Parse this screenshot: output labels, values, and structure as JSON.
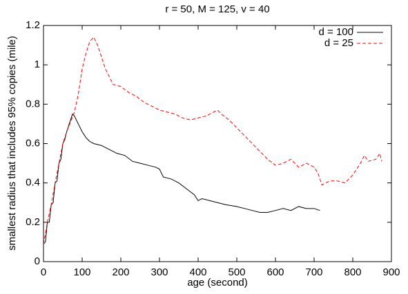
{
  "chart_data": {
    "type": "line",
    "title": "r = 50, M = 125, v = 40",
    "x_label": "age (second)",
    "y_label": "smallest radius that includes 95% copies (mile)",
    "xlim": [
      0,
      900
    ],
    "xticks": [
      0,
      100,
      200,
      300,
      400,
      500,
      600,
      700,
      800,
      900
    ],
    "ylim": [
      0,
      1.2
    ],
    "yticks": [
      0,
      0.2,
      0.4,
      0.6,
      0.8,
      1,
      1.2
    ],
    "legend": "top right",
    "series": [
      {
        "name": "d = 100",
        "color": "#000000",
        "style": "solid",
        "x": [
          0,
          5,
          10,
          15,
          20,
          25,
          30,
          35,
          40,
          45,
          50,
          55,
          60,
          70,
          75,
          80,
          90,
          100,
          110,
          120,
          130,
          150,
          170,
          190,
          210,
          230,
          250,
          270,
          290,
          300,
          310,
          330,
          350,
          370,
          390,
          400,
          410,
          430,
          450,
          470,
          500,
          520,
          540,
          560,
          580,
          600,
          620,
          640,
          660,
          680,
          700,
          715
        ],
        "values": [
          0.09,
          0.1,
          0.2,
          0.2,
          0.29,
          0.3,
          0.4,
          0.41,
          0.5,
          0.52,
          0.6,
          0.62,
          0.66,
          0.72,
          0.75,
          0.74,
          0.7,
          0.66,
          0.63,
          0.61,
          0.6,
          0.59,
          0.57,
          0.55,
          0.54,
          0.51,
          0.5,
          0.49,
          0.48,
          0.47,
          0.43,
          0.42,
          0.4,
          0.37,
          0.34,
          0.31,
          0.32,
          0.31,
          0.3,
          0.29,
          0.28,
          0.27,
          0.26,
          0.25,
          0.25,
          0.26,
          0.27,
          0.26,
          0.28,
          0.27,
          0.27,
          0.26
        ]
      },
      {
        "name": "d = 25",
        "color": "#ff0000",
        "style": "dashed",
        "x": [
          0,
          10,
          20,
          30,
          40,
          50,
          60,
          70,
          80,
          90,
          100,
          110,
          120,
          130,
          140,
          150,
          160,
          170,
          180,
          200,
          220,
          240,
          260,
          280,
          300,
          320,
          340,
          360,
          380,
          400,
          420,
          440,
          450,
          460,
          480,
          500,
          510,
          520,
          540,
          560,
          580,
          600,
          620,
          640,
          660,
          680,
          700,
          710,
          720,
          740,
          760,
          780,
          800,
          820,
          830,
          840,
          860,
          870,
          875
        ],
        "values": [
          0.09,
          0.2,
          0.29,
          0.4,
          0.5,
          0.6,
          0.66,
          0.71,
          0.76,
          0.85,
          0.98,
          1.06,
          1.12,
          1.14,
          1.1,
          1.04,
          0.98,
          0.94,
          0.9,
          0.89,
          0.86,
          0.84,
          0.81,
          0.79,
          0.77,
          0.76,
          0.75,
          0.73,
          0.72,
          0.73,
          0.74,
          0.76,
          0.77,
          0.75,
          0.72,
          0.68,
          0.66,
          0.64,
          0.6,
          0.56,
          0.52,
          0.49,
          0.5,
          0.52,
          0.48,
          0.5,
          0.48,
          0.45,
          0.39,
          0.41,
          0.41,
          0.4,
          0.44,
          0.5,
          0.54,
          0.51,
          0.52,
          0.55,
          0.51
        ]
      }
    ]
  }
}
